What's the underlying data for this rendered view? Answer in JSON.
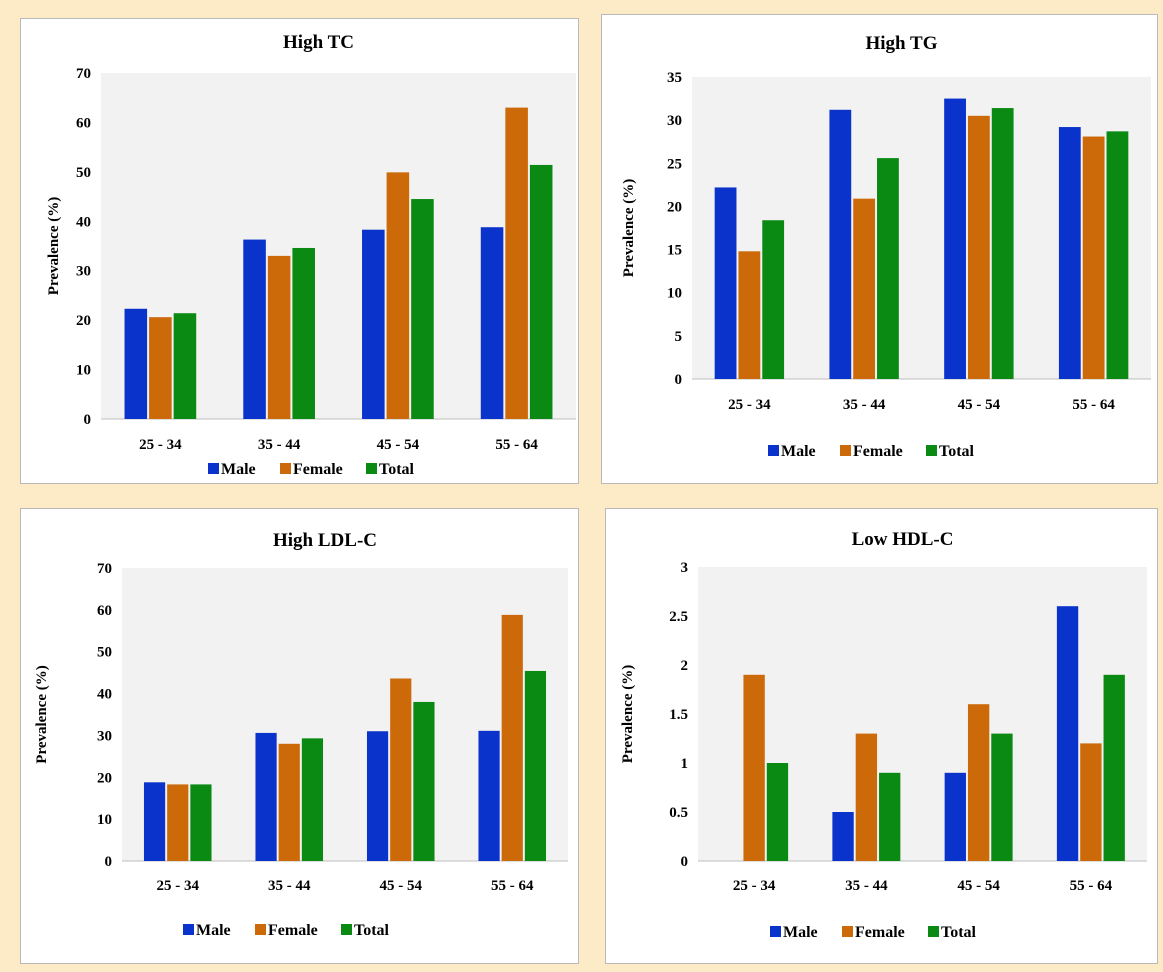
{
  "colors": {
    "Male": "#0a33cc",
    "Female": "#cc6a0a",
    "Total": "#0a8a12",
    "plot_bg": "#f2f2f2",
    "axis": "#bfbfbf"
  },
  "chart_data": [
    {
      "type": "bar",
      "title": "High TC",
      "ylabel": "Prevalence (%)",
      "xlabel": "",
      "categories": [
        "25 - 34",
        "35 - 44",
        "45 - 54",
        "55 - 64"
      ],
      "ylim": [
        0,
        70
      ],
      "yticks": [
        "0",
        "10",
        "20",
        "30",
        "40",
        "50",
        "60",
        "70"
      ],
      "ytick_values": [
        0,
        10,
        20,
        30,
        40,
        50,
        60,
        70
      ],
      "grid": false,
      "legend": "bottom",
      "series": [
        {
          "name": "Male",
          "values": [
            22.3,
            36.3,
            38.3,
            38.8
          ]
        },
        {
          "name": "Female",
          "values": [
            20.6,
            33.0,
            49.9,
            63.0
          ]
        },
        {
          "name": "Total",
          "values": [
            21.4,
            34.6,
            44.5,
            51.4
          ]
        }
      ]
    },
    {
      "type": "bar",
      "title": "High TG",
      "ylabel": "Prevalence (%)",
      "xlabel": "",
      "categories": [
        "25 - 34",
        "35 - 44",
        "45 - 54",
        "55 - 64"
      ],
      "ylim": [
        0,
        35
      ],
      "yticks": [
        "0",
        "5",
        "10",
        "15",
        "20",
        "25",
        "30",
        "35"
      ],
      "ytick_values": [
        0,
        5,
        10,
        15,
        20,
        25,
        30,
        35
      ],
      "grid": false,
      "legend": "bottom",
      "series": [
        {
          "name": "Male",
          "values": [
            22.2,
            31.2,
            32.5,
            29.2
          ]
        },
        {
          "name": "Female",
          "values": [
            14.8,
            20.9,
            30.5,
            28.1
          ]
        },
        {
          "name": "Total",
          "values": [
            18.4,
            25.6,
            31.4,
            28.7
          ]
        }
      ]
    },
    {
      "type": "bar",
      "title": "High LDL-C",
      "ylabel": "Prevalence (%)",
      "xlabel": "",
      "categories": [
        "25 - 34",
        "35 - 44",
        "45 - 54",
        "55 - 64"
      ],
      "ylim": [
        0,
        70
      ],
      "yticks": [
        "0",
        "10",
        "20",
        "30",
        "40",
        "50",
        "60",
        "70"
      ],
      "ytick_values": [
        0,
        10,
        20,
        30,
        40,
        50,
        60,
        70
      ],
      "grid": false,
      "legend": "bottom",
      "series": [
        {
          "name": "Male",
          "values": [
            18.8,
            30.6,
            31.0,
            31.1
          ]
        },
        {
          "name": "Female",
          "values": [
            18.3,
            28.0,
            43.6,
            58.8
          ]
        },
        {
          "name": "Total",
          "values": [
            18.3,
            29.3,
            38.0,
            45.4
          ]
        }
      ]
    },
    {
      "type": "bar",
      "title": "Low HDL-C",
      "ylabel": "Prevalence (%)",
      "xlabel": "",
      "categories": [
        "25 - 34",
        "35 - 44",
        "45 - 54",
        "55 - 64"
      ],
      "ylim": [
        0,
        3
      ],
      "yticks": [
        "0",
        "0.5",
        "1",
        "1.5",
        "2",
        "2.5",
        "3"
      ],
      "ytick_values": [
        0,
        0.5,
        1,
        1.5,
        2,
        2.5,
        3
      ],
      "grid": false,
      "legend": "bottom",
      "series": [
        {
          "name": "Male",
          "values": [
            0,
            0.5,
            0.9,
            2.6
          ]
        },
        {
          "name": "Female",
          "values": [
            1.9,
            1.3,
            1.6,
            1.2
          ]
        },
        {
          "name": "Total",
          "values": [
            1.0,
            0.9,
            1.3,
            1.9
          ]
        }
      ]
    }
  ]
}
